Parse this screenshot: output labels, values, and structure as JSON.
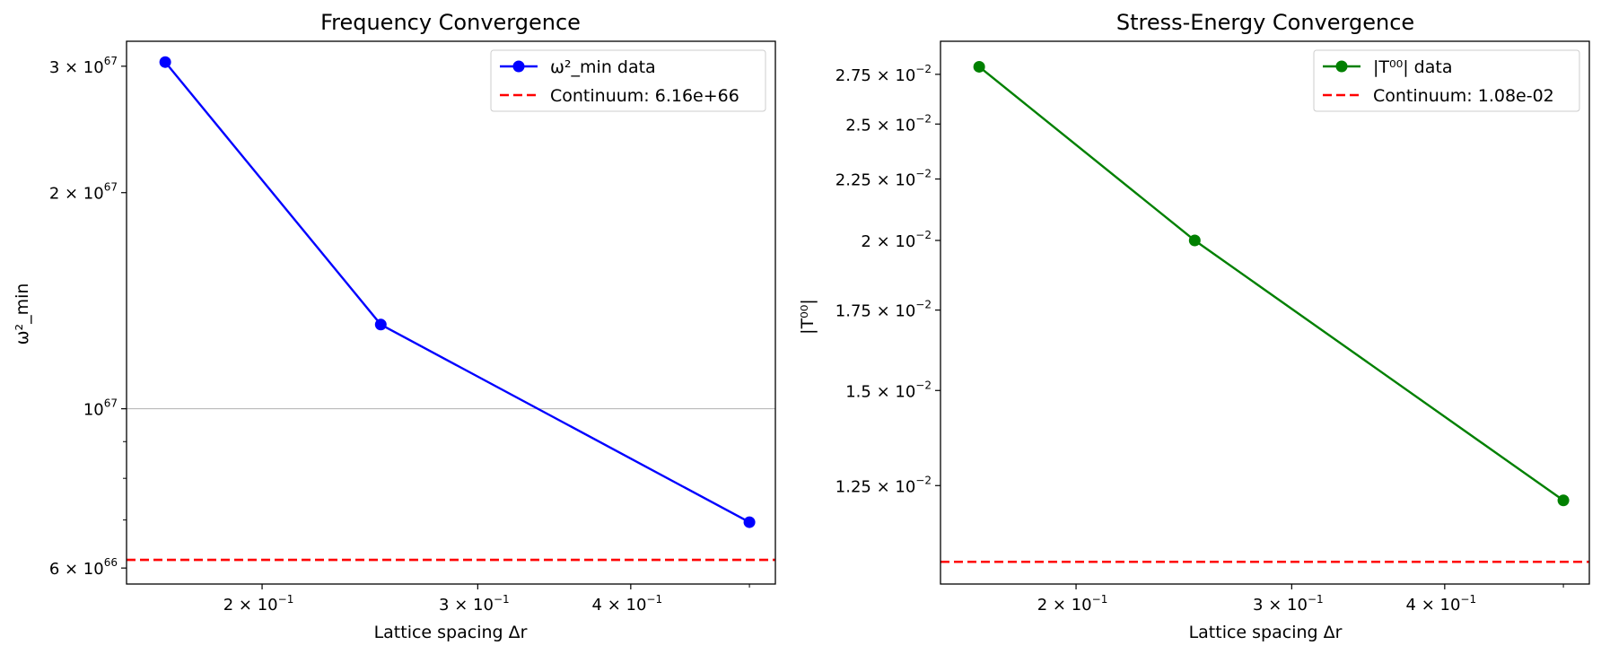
{
  "chart_data": [
    {
      "type": "line",
      "title": "Frequency Convergence",
      "xlabel": "Lattice spacing Δr",
      "ylabel": "ω²_min",
      "xscale": "log",
      "yscale": "log",
      "xlim": [
        0.155,
        0.525
      ],
      "ylim": [
        5.7e+66,
        3.25e+67
      ],
      "xticks": [
        {
          "value": 0.2,
          "mant": "2 × 10",
          "exp": "−1"
        },
        {
          "value": 0.3,
          "mant": "3 × 10",
          "exp": "−1"
        },
        {
          "value": 0.4,
          "mant": "4 × 10",
          "exp": "−1"
        }
      ],
      "x_minor_ticks": [
        0.5
      ],
      "yticks": [
        {
          "value": 6e+66,
          "mant": "6 × 10",
          "exp": "66"
        },
        {
          "value": 1e+67,
          "mant": "10",
          "exp": "67"
        },
        {
          "value": 2e+67,
          "mant": "2 × 10",
          "exp": "67"
        },
        {
          "value": 3e+67,
          "mant": "3 × 10",
          "exp": "67"
        }
      ],
      "y_minor_ticks": [
        7e+66,
        8e+66,
        9e+66
      ],
      "grid_lines_y": [
        1e+67
      ],
      "series": [
        {
          "name": "ω²_min data",
          "x": [
            0.1667,
            0.25,
            0.5
          ],
          "y": [
            3.04e+67,
            1.31e+67,
            6.95e+66
          ],
          "color": "#0000ff",
          "style": "solid-marker"
        }
      ],
      "hlines": [
        {
          "name": "Continuum: 6.16e+66",
          "y": 6.16e+66,
          "color": "#ff0000",
          "style": "dashed"
        }
      ],
      "legend": "top-right"
    },
    {
      "type": "line",
      "title": "Stress-Energy Convergence",
      "xlabel": "Lattice spacing Δr",
      "ylabel": "|T⁰⁰|",
      "xscale": "log",
      "yscale": "log",
      "xlim": [
        0.155,
        0.525
      ],
      "ylim": [
        0.01035,
        0.0293
      ],
      "xticks": [
        {
          "value": 0.2,
          "mant": "2 × 10",
          "exp": "−1"
        },
        {
          "value": 0.3,
          "mant": "3 × 10",
          "exp": "−1"
        },
        {
          "value": 0.4,
          "mant": "4 × 10",
          "exp": "−1"
        }
      ],
      "x_minor_ticks": [
        0.5
      ],
      "yticks": [
        {
          "value": 0.0125,
          "mant": "1.25 × 10",
          "exp": "−2"
        },
        {
          "value": 0.015,
          "mant": "1.5 × 10",
          "exp": "−2"
        },
        {
          "value": 0.0175,
          "mant": "1.75 × 10",
          "exp": "−2"
        },
        {
          "value": 0.02,
          "mant": "2 × 10",
          "exp": "−2"
        },
        {
          "value": 0.0225,
          "mant": "2.25 × 10",
          "exp": "−2"
        },
        {
          "value": 0.025,
          "mant": "2.5 × 10",
          "exp": "−2"
        },
        {
          "value": 0.0275,
          "mant": "2.75 × 10",
          "exp": "−2"
        }
      ],
      "y_minor_ticks": [],
      "grid_lines_y": [],
      "series": [
        {
          "name": "|T⁰⁰| data",
          "x": [
            0.1667,
            0.25,
            0.5
          ],
          "y": [
            0.0279,
            0.02,
            0.01215
          ],
          "color": "#008000",
          "style": "solid-marker"
        }
      ],
      "hlines": [
        {
          "name": "Continuum: 1.08e-02",
          "y": 0.0108,
          "color": "#ff0000",
          "style": "dashed"
        }
      ],
      "legend": "top-right"
    }
  ]
}
